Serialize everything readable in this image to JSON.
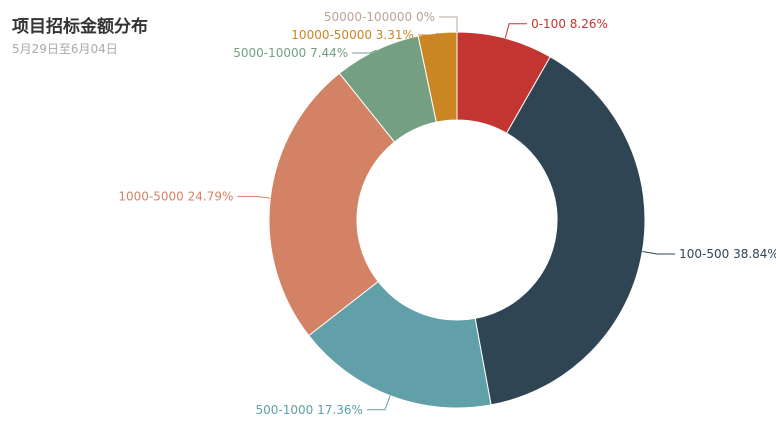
{
  "chart_data": {
    "type": "pie",
    "variant": "donut",
    "title": "项目招标金额分布",
    "subtitle": "5月29日至6月04日",
    "start": "top, clockwise",
    "slices": [
      {
        "label": "0-100",
        "value": 8.26,
        "color": "#c23531"
      },
      {
        "label": "100-500",
        "value": 38.84,
        "color": "#2f4554"
      },
      {
        "label": "500-1000",
        "value": 17.36,
        "color": "#61a0a8"
      },
      {
        "label": "1000-5000",
        "value": 24.79,
        "color": "#d48265"
      },
      {
        "label": "5000-10000",
        "value": 7.44,
        "color": "#749f83"
      },
      {
        "label": "10000-50000",
        "value": 3.31,
        "color": "#ca8622"
      },
      {
        "label": "50000-100000",
        "value": 0,
        "color": "#bda29a"
      }
    ],
    "label_format": "{name} {percent}%"
  }
}
